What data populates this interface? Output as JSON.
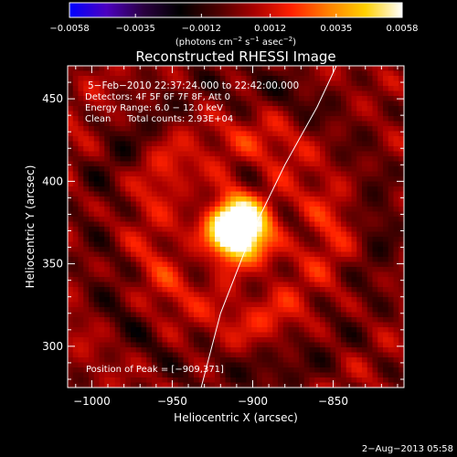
{
  "chart_data": {
    "type": "heatmap",
    "title": "Reconstructed RHESSI Image",
    "xlabel": "Heliocentric X (arcsec)",
    "ylabel": "Heliocentric Y (arcsec)",
    "xlim": [
      -1015,
      -806
    ],
    "ylim": [
      275,
      470
    ],
    "x_ticks": [
      -1000,
      -950,
      -900,
      -850
    ],
    "x_tick_labels": [
      "−1000",
      "−950",
      "−900",
      "−850"
    ],
    "y_ticks": [
      300,
      350,
      400,
      450
    ],
    "y_tick_labels": [
      "300",
      "350",
      "400",
      "450"
    ],
    "colorbar": {
      "min": -0.0058,
      "max": 0.0058,
      "ticks": [
        -0.0058,
        -0.0035,
        -0.0012,
        0.0012,
        0.0035,
        0.0058
      ],
      "tick_labels": [
        "−0.0058",
        "−0.0035",
        "−0.0012",
        "0.0012",
        "0.0035",
        "0.0058"
      ],
      "unit_main": "(photons cm",
      "unit_exp1": "−2",
      "unit_mid1": " s",
      "unit_exp2": "−1",
      "unit_mid2": " asec",
      "unit_exp3": "−2",
      "unit_end": ")",
      "colormap": [
        "#0000ff",
        "#4c00c0",
        "#2a0040",
        "#000000",
        "#4a0000",
        "#a80000",
        "#ff2000",
        "#ff8000",
        "#ffd000",
        "#ffffff"
      ]
    },
    "annotations": [
      "5−Feb−2010 22:37:24.000 to 22:42:00.000",
      "Detectors: 4F 5F 6F 7F 8F, Att 0",
      "Energy Range: 6.0 − 12.0 keV",
      "Clean",
      "Total counts: 2.93E+04"
    ],
    "peak_label": "Position of Peak = [−909,371]",
    "peak": {
      "x": -909,
      "y": 371,
      "value": 0.0058
    },
    "limb_curve": [
      [
        -932,
        275
      ],
      [
        -920,
        320
      ],
      [
        -900,
        370
      ],
      [
        -880,
        410
      ],
      [
        -860,
        445
      ],
      [
        -848,
        470
      ]
    ],
    "grid": false
  },
  "footer": {
    "date": "2−Aug−2013 05:58"
  }
}
